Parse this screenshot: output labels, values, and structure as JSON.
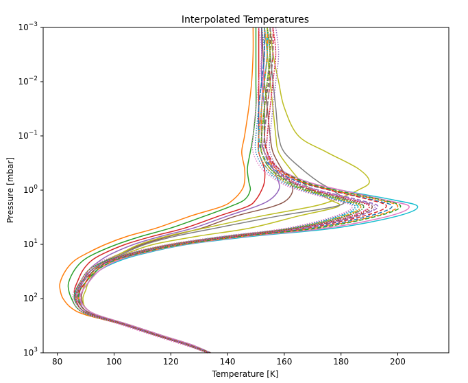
{
  "chart_data": {
    "type": "line",
    "title": "Interpolated Temperatures",
    "xlabel": "Temperature [K]",
    "ylabel": "Pressure [mbar]",
    "xlim": [
      75,
      218
    ],
    "ylim": [
      1000,
      0.001
    ],
    "yscale": "log",
    "yaxis_inverted": true,
    "grid": false,
    "legend": "none",
    "xticks": [
      80,
      100,
      120,
      140,
      160,
      180,
      200
    ],
    "yticks": [
      {
        "value": 0.001,
        "base": "10",
        "exp": "−3"
      },
      {
        "value": 0.01,
        "base": "10",
        "exp": "−2"
      },
      {
        "value": 0.1,
        "base": "10",
        "exp": "−1"
      },
      {
        "value": 1,
        "base": "10",
        "exp": "0"
      },
      {
        "value": 10,
        "base": "10",
        "exp": "1"
      },
      {
        "value": 100,
        "base": "10",
        "exp": "2"
      },
      {
        "value": 1000,
        "base": "10",
        "exp": "3"
      }
    ],
    "pressure_levels": [
      0.001,
      0.003,
      0.01,
      0.03,
      0.1,
      0.2,
      0.4,
      0.7,
      1,
      1.5,
      2,
      3,
      5,
      7,
      10,
      15,
      20,
      30,
      50,
      70,
      100,
      150,
      200,
      300,
      500,
      700,
      1000
    ],
    "series": [
      {
        "color": "#ff7f0e",
        "dash": "solid",
        "temperature": [
          149,
          149,
          148.5,
          147.5,
          146,
          145,
          146,
          146,
          145,
          142,
          138,
          127,
          115,
          105,
          97,
          90,
          86,
          83,
          81,
          81,
          82,
          85,
          90,
          103,
          116,
          125,
          133
        ]
      },
      {
        "color": "#2ca02c",
        "dash": "solid",
        "temperature": [
          150,
          150,
          150,
          150,
          149,
          148,
          147,
          147.5,
          148,
          146,
          141,
          132,
          120,
          110,
          101,
          93,
          89,
          86,
          84,
          84,
          85,
          87,
          91,
          103,
          116,
          125,
          133
        ]
      },
      {
        "color": "#d62728",
        "dash": "solid",
        "temperature": [
          151,
          151,
          151,
          151,
          151,
          151,
          153,
          153,
          152,
          150,
          147,
          137,
          125,
          114,
          104,
          96,
          92,
          89,
          87,
          86,
          86.5,
          88,
          92,
          104,
          117,
          126,
          134
        ]
      },
      {
        "color": "#9467bd",
        "dash": "solid",
        "temperature": [
          152,
          152,
          152,
          153,
          153,
          154,
          156,
          158,
          158,
          155,
          150,
          140,
          128,
          117,
          107,
          99,
          95,
          91,
          89,
          88,
          88,
          89,
          93,
          104,
          117,
          126,
          134
        ]
      },
      {
        "color": "#8c564b",
        "dash": "solid",
        "temperature": [
          152,
          152.5,
          153,
          154,
          155,
          156,
          159,
          162,
          163,
          161,
          156,
          143,
          131,
          120,
          110,
          102,
          97,
          93,
          90,
          89,
          88.5,
          90,
          94,
          105,
          118,
          127,
          134
        ]
      },
      {
        "color": "#bcbd22",
        "dash": "solid",
        "temperature": [
          153,
          154,
          155,
          156,
          157,
          158,
          162,
          166,
          170,
          176,
          179,
          165,
          148,
          130,
          114,
          104,
          98,
          94,
          91,
          90,
          89,
          90,
          94,
          105,
          118,
          127,
          134
        ]
      },
      {
        "color": "#7f7f7f",
        "dash": "solid",
        "temperature": [
          154,
          155,
          156,
          157,
          158,
          160,
          166,
          172,
          177,
          181,
          178,
          158,
          136,
          122,
          111,
          103,
          98,
          94,
          91,
          89,
          88,
          90,
          94,
          105,
          118,
          127,
          134
        ]
      },
      {
        "color": "#bcbd22",
        "dash": "solid",
        "temperature": [
          155,
          156,
          158,
          160,
          165,
          175,
          186,
          190,
          186,
          178,
          170,
          152,
          132,
          119,
          109,
          102,
          97,
          93,
          90,
          89,
          88,
          90,
          94,
          105,
          118,
          127,
          134
        ]
      },
      {
        "color": "#17becf",
        "dash": "solid",
        "temperature": [
          154,
          154,
          153,
          152,
          152,
          153,
          158,
          168,
          180,
          198,
          207,
          200,
          178,
          150,
          126,
          110,
          102,
          95,
          91,
          89,
          88,
          90,
          94,
          105,
          118,
          127,
          134
        ]
      },
      {
        "color": "#e377c2",
        "dash": "solid",
        "temperature": [
          153,
          153,
          152.5,
          152,
          152,
          153,
          158,
          168,
          180,
          195,
          204,
          197,
          175,
          148,
          125,
          109,
          101,
          95,
          91,
          89,
          88,
          90,
          94,
          105,
          118,
          127,
          134
        ]
      },
      {
        "color": "#1f77b4",
        "dash": "dashed",
        "temperature": [
          153,
          153,
          152,
          151,
          151,
          152,
          156,
          165,
          176,
          191,
          198,
          190,
          170,
          145,
          123,
          108,
          100,
          94,
          90,
          88,
          87.5,
          89,
          93,
          104,
          117,
          126,
          134
        ]
      },
      {
        "color": "#ff7f0e",
        "dash": "dashed",
        "temperature": [
          154,
          154,
          153,
          152,
          152,
          153,
          157,
          166,
          177,
          193,
          200,
          192,
          171,
          146,
          124,
          108,
          100,
          94,
          90,
          88,
          87.5,
          89,
          93,
          104,
          117,
          126,
          134
        ]
      },
      {
        "color": "#2ca02c",
        "dash": "dashed",
        "temperature": [
          155,
          155,
          154,
          153,
          153,
          154,
          158,
          167,
          178,
          194,
          201,
          193,
          172,
          146,
          124,
          108,
          100,
          94,
          90,
          88,
          87.5,
          89,
          93,
          104,
          117,
          126,
          134
        ]
      },
      {
        "color": "#d62728",
        "dash": "dashed",
        "temperature": [
          156,
          156,
          155,
          154,
          153,
          154,
          158,
          166,
          176,
          190,
          196,
          188,
          168,
          144,
          122,
          107,
          99,
          93,
          90,
          88,
          87,
          89,
          93,
          104,
          117,
          126,
          134
        ]
      },
      {
        "color": "#9467bd",
        "dash": "dashed",
        "temperature": [
          155,
          155,
          154,
          153,
          152,
          153,
          156,
          163,
          172,
          186,
          193,
          186,
          167,
          143,
          122,
          107,
          99,
          93,
          89,
          87.5,
          87,
          89,
          93,
          104,
          117,
          126,
          134
        ]
      },
      {
        "color": "#8c564b",
        "dash": "dashed",
        "temperature": [
          155,
          155,
          154.5,
          153,
          152,
          152,
          155,
          162,
          170,
          184,
          191,
          185,
          166,
          143,
          122,
          107,
          99,
          93,
          89,
          87.5,
          87,
          89,
          93,
          104,
          117,
          126,
          134
        ]
      },
      {
        "color": "#e377c2",
        "dash": "dashdot",
        "temperature": [
          156,
          157,
          156,
          155,
          154,
          154,
          157,
          163,
          171,
          184,
          190,
          183,
          165,
          142,
          121,
          106,
          98,
          92,
          89,
          87,
          86.5,
          88,
          92,
          103,
          116,
          125,
          133
        ]
      },
      {
        "color": "#7f7f7f",
        "dash": "dashdot",
        "temperature": [
          155,
          156,
          155,
          154,
          153,
          153,
          156,
          162,
          169,
          182,
          188,
          182,
          164,
          141,
          121,
          106,
          98,
          92,
          89,
          87,
          86.5,
          88,
          92,
          103,
          116,
          125,
          133
        ]
      },
      {
        "color": "#bcbd22",
        "dash": "dashdot",
        "temperature": [
          154,
          155,
          154,
          153,
          152,
          152,
          155,
          161,
          168,
          180,
          187,
          181,
          163,
          141,
          121,
          106,
          98,
          92,
          88.5,
          87,
          86.5,
          88,
          92,
          103,
          116,
          125,
          133
        ]
      },
      {
        "color": "#17becf",
        "dash": "dashdot",
        "temperature": [
          153,
          154,
          153,
          152,
          151,
          151,
          154,
          160,
          167,
          179,
          186,
          180,
          163,
          140,
          120,
          105,
          97,
          92,
          88.5,
          87,
          86,
          88,
          92,
          103,
          116,
          125,
          133
        ]
      },
      {
        "color": "#1f77b4",
        "dash": "dotted",
        "temperature": [
          152,
          153,
          152,
          151,
          150,
          150,
          153,
          159,
          166,
          178,
          185,
          179,
          162,
          140,
          120,
          105,
          97,
          91,
          88,
          86.5,
          86,
          88,
          92,
          103,
          116,
          125,
          133
        ]
      },
      {
        "color": "#ff7f0e",
        "dash": "dotted",
        "temperature": [
          153,
          154,
          153,
          152,
          151,
          151,
          154,
          160,
          167,
          180,
          187,
          181,
          163,
          141,
          120,
          105,
          97,
          91,
          88,
          86.5,
          86,
          88,
          92,
          103,
          116,
          125,
          133
        ]
      },
      {
        "color": "#2ca02c",
        "dash": "dotted",
        "temperature": [
          154,
          155,
          154,
          153,
          152,
          152,
          155,
          161,
          168,
          181,
          188,
          182,
          164,
          141,
          120,
          105,
          97,
          91,
          88,
          86.5,
          86,
          88,
          92,
          103,
          116,
          125,
          133
        ]
      },
      {
        "color": "#d62728",
        "dash": "dotted",
        "temperature": [
          156,
          157,
          156,
          155,
          154,
          154,
          157,
          163,
          170,
          183,
          190,
          184,
          165,
          142,
          121,
          106,
          98,
          92,
          88.5,
          87,
          86.5,
          88,
          92,
          103,
          116,
          125,
          133
        ]
      },
      {
        "color": "#9467bd",
        "dash": "dotted",
        "temperature": [
          157,
          158,
          157,
          156,
          155,
          155,
          158,
          164,
          172,
          185,
          192,
          186,
          167,
          143,
          122,
          106,
          98,
          92,
          88.5,
          87,
          86.5,
          88,
          92,
          103,
          116,
          125,
          133
        ]
      },
      {
        "color": "#e377c2",
        "dash": "dotted",
        "temperature": [
          151,
          152,
          151,
          150,
          149,
          149,
          152,
          158,
          165,
          177,
          184,
          178,
          161,
          139,
          119,
          104,
          96,
          91,
          88,
          86,
          85.5,
          87,
          91,
          102,
          115,
          124,
          133
        ]
      }
    ]
  }
}
